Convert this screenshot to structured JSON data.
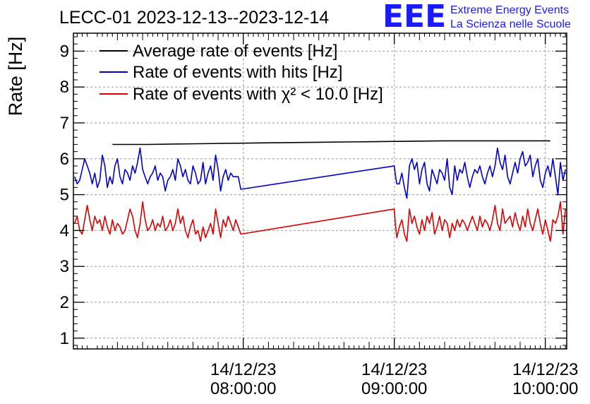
{
  "chart_data": {
    "type": "line",
    "title": "LECC-01 2023-12-13--2023-12-14",
    "ylabel": "Rate [Hz]",
    "xlabel": "",
    "ylim": [
      0.7,
      9.5
    ],
    "xlim_minutes": [
      -67.5,
      128.5
    ],
    "yticks": [
      "1",
      "2",
      "3",
      "4",
      "5",
      "6",
      "7",
      "8",
      "9"
    ],
    "xticks": [
      {
        "date": "14/12/23",
        "time": "08:00:00",
        "minute": 0
      },
      {
        "date": "14/12/23",
        "time": "09:00:00",
        "minute": 60
      },
      {
        "date": "14/12/23",
        "time": "10:00:00",
        "minute": 120
      }
    ],
    "grid": true,
    "legend_position": "top-left",
    "series": [
      {
        "name": "Average rate of events [Hz]",
        "color": "#000000",
        "points": [
          [
            -52,
            6.4
          ],
          [
            -38,
            6.4
          ],
          [
            -18,
            6.42
          ],
          [
            5,
            6.44
          ],
          [
            30,
            6.46
          ],
          [
            55,
            6.48
          ],
          [
            80,
            6.5
          ],
          [
            105,
            6.5
          ],
          [
            122,
            6.5
          ]
        ]
      },
      {
        "name": "Rate of events with hits [Hz]",
        "color": "#0000cc",
        "points": [
          [
            -67,
            5.5
          ],
          [
            -66,
            5.3
          ],
          [
            -65,
            5.4
          ],
          [
            -64,
            5.7
          ],
          [
            -63,
            6.0
          ],
          [
            -62,
            5.8
          ],
          [
            -61,
            5.6
          ],
          [
            -60,
            5.3
          ],
          [
            -59,
            5.6
          ],
          [
            -58,
            5.2
          ],
          [
            -57,
            5.4
          ],
          [
            -56,
            6.1
          ],
          [
            -55,
            5.8
          ],
          [
            -54,
            5.2
          ],
          [
            -53,
            5.5
          ],
          [
            -52,
            5.3
          ],
          [
            -51,
            5.8
          ],
          [
            -50,
            6.0
          ],
          [
            -49,
            5.5
          ],
          [
            -48,
            5.3
          ],
          [
            -47,
            5.7
          ],
          [
            -46,
            5.6
          ],
          [
            -45,
            5.4
          ],
          [
            -44,
            5.8
          ],
          [
            -43,
            5.6
          ],
          [
            -42,
            5.9
          ],
          [
            -41,
            6.3
          ],
          [
            -40,
            5.7
          ],
          [
            -39,
            5.5
          ],
          [
            -38,
            5.3
          ],
          [
            -37,
            5.5
          ],
          [
            -36,
            5.6
          ],
          [
            -35,
            5.8
          ],
          [
            -34,
            5.4
          ],
          [
            -33,
            5.6
          ],
          [
            -32,
            5.5
          ],
          [
            -31,
            5.1
          ],
          [
            -30,
            5.4
          ],
          [
            -29,
            5.5
          ],
          [
            -28,
            5.7
          ],
          [
            -27,
            5.4
          ],
          [
            -26,
            6.0
          ],
          [
            -25,
            5.8
          ],
          [
            -24,
            5.5
          ],
          [
            -23,
            5.7
          ],
          [
            -22,
            5.4
          ],
          [
            -21,
            5.3
          ],
          [
            -20,
            5.8
          ],
          [
            -19,
            5.6
          ],
          [
            -18,
            5.3
          ],
          [
            -17,
            5.4
          ],
          [
            -16,
            5.9
          ],
          [
            -15,
            5.3
          ],
          [
            -14,
            5.6
          ],
          [
            -13,
            5.8
          ],
          [
            -12,
            5.4
          ],
          [
            -11,
            6.1
          ],
          [
            -10,
            5.7
          ],
          [
            -9,
            5.1
          ],
          [
            -8,
            5.5
          ],
          [
            -7,
            5.7
          ],
          [
            -6,
            5.4
          ],
          [
            -5,
            5.6
          ],
          [
            -4,
            5.5
          ],
          [
            -3,
            5.5
          ],
          [
            -2,
            5.5
          ],
          [
            -1,
            5.15
          ],
          [
            60,
            5.8
          ],
          [
            60.5,
            5.5
          ],
          [
            61,
            5.3
          ],
          [
            62,
            5.3
          ],
          [
            63,
            5.6
          ],
          [
            64,
            5.2
          ],
          [
            65,
            4.9
          ],
          [
            66,
            5.8
          ],
          [
            67,
            6.0
          ],
          [
            68,
            5.7
          ],
          [
            69,
            5.9
          ],
          [
            70,
            5.3
          ],
          [
            71,
            5.7
          ],
          [
            72,
            5.9
          ],
          [
            73,
            5.3
          ],
          [
            74,
            5.1
          ],
          [
            75,
            5.7
          ],
          [
            76,
            5.5
          ],
          [
            77,
            5.3
          ],
          [
            78,
            5.7
          ],
          [
            79,
            5.6
          ],
          [
            80,
            5.4
          ],
          [
            81,
            6.0
          ],
          [
            82,
            5.2
          ],
          [
            83,
            5.0
          ],
          [
            84,
            5.8
          ],
          [
            85,
            5.4
          ],
          [
            86,
            5.7
          ],
          [
            87,
            5.6
          ],
          [
            88,
            5.9
          ],
          [
            89,
            5.5
          ],
          [
            90,
            5.2
          ],
          [
            91,
            5.5
          ],
          [
            92,
            5.7
          ],
          [
            93,
            5.6
          ],
          [
            94,
            5.8
          ],
          [
            95,
            5.5
          ],
          [
            96,
            5.3
          ],
          [
            97,
            5.6
          ],
          [
            98,
            5.8
          ],
          [
            99,
            5.5
          ],
          [
            100,
            5.8
          ],
          [
            101,
            6.3
          ],
          [
            102,
            5.9
          ],
          [
            103,
            5.7
          ],
          [
            104,
            6.1
          ],
          [
            105,
            5.5
          ],
          [
            106,
            5.3
          ],
          [
            107,
            5.6
          ],
          [
            108,
            5.9
          ],
          [
            109,
            5.6
          ],
          [
            110,
            6.0
          ],
          [
            111,
            6.2
          ],
          [
            112,
            5.8
          ],
          [
            113,
            5.9
          ],
          [
            114,
            6.1
          ],
          [
            115,
            5.5
          ],
          [
            116,
            5.8
          ],
          [
            117,
            6.0
          ],
          [
            118,
            5.4
          ],
          [
            119,
            5.2
          ],
          [
            120,
            5.6
          ],
          [
            121,
            5.8
          ],
          [
            122,
            5.5
          ],
          [
            123,
            6.0
          ],
          [
            124,
            5.5
          ],
          [
            125,
            5.0
          ],
          [
            126,
            5.9
          ],
          [
            127,
            5.4
          ],
          [
            128,
            5.7
          ]
        ]
      },
      {
        "name": "Rate of events with χ² < 10.0 [Hz]",
        "color": "#dd0000",
        "points": [
          [
            -67,
            4.2
          ],
          [
            -66,
            4.4
          ],
          [
            -65,
            4.0
          ],
          [
            -64,
            3.9
          ],
          [
            -63,
            4.3
          ],
          [
            -62,
            4.7
          ],
          [
            -61,
            4.3
          ],
          [
            -60,
            4.0
          ],
          [
            -59,
            4.4
          ],
          [
            -58,
            4.2
          ],
          [
            -57,
            4.3
          ],
          [
            -56,
            4.0
          ],
          [
            -55,
            4.4
          ],
          [
            -54,
            4.1
          ],
          [
            -53,
            3.9
          ],
          [
            -52,
            4.3
          ],
          [
            -51,
            4.0
          ],
          [
            -50,
            4.2
          ],
          [
            -49,
            4.1
          ],
          [
            -48,
            3.9
          ],
          [
            -47,
            4.0
          ],
          [
            -46,
            4.3
          ],
          [
            -45,
            4.6
          ],
          [
            -44,
            4.4
          ],
          [
            -43,
            4.0
          ],
          [
            -42,
            3.8
          ],
          [
            -41,
            4.2
          ],
          [
            -40,
            4.8
          ],
          [
            -39,
            4.3
          ],
          [
            -38,
            4.0
          ],
          [
            -37,
            4.1
          ],
          [
            -36,
            4.3
          ],
          [
            -35,
            4.0
          ],
          [
            -34,
            4.2
          ],
          [
            -33,
            4.1
          ],
          [
            -32,
            4.4
          ],
          [
            -31,
            4.0
          ],
          [
            -30,
            4.1
          ],
          [
            -29,
            4.3
          ],
          [
            -28,
            4.0
          ],
          [
            -27,
            4.2
          ],
          [
            -26,
            4.6
          ],
          [
            -25,
            4.2
          ],
          [
            -24,
            4.4
          ],
          [
            -23,
            4.0
          ],
          [
            -22,
            3.8
          ],
          [
            -21,
            4.1
          ],
          [
            -20,
            4.3
          ],
          [
            -19,
            3.9
          ],
          [
            -18,
            4.0
          ],
          [
            -17,
            3.7
          ],
          [
            -16,
            4.1
          ],
          [
            -15,
            3.8
          ],
          [
            -14,
            4.0
          ],
          [
            -13,
            4.2
          ],
          [
            -12,
            3.9
          ],
          [
            -11,
            4.6
          ],
          [
            -10,
            4.2
          ],
          [
            -9,
            3.8
          ],
          [
            -8,
            4.3
          ],
          [
            -7,
            4.1
          ],
          [
            -6,
            4.4
          ],
          [
            -5,
            4.2
          ],
          [
            -4,
            4.0
          ],
          [
            -3,
            4.3
          ],
          [
            -2,
            4.1
          ],
          [
            -1,
            3.9
          ],
          [
            60,
            4.6
          ],
          [
            60.5,
            4.1
          ],
          [
            61,
            3.8
          ],
          [
            62,
            4.1
          ],
          [
            63,
            4.3
          ],
          [
            64,
            3.9
          ],
          [
            65,
            3.7
          ],
          [
            66,
            4.6
          ],
          [
            67,
            4.2
          ],
          [
            68,
            4.4
          ],
          [
            69,
            4.1
          ],
          [
            70,
            3.9
          ],
          [
            71,
            4.3
          ],
          [
            72,
            4.0
          ],
          [
            73,
            4.4
          ],
          [
            74,
            4.2
          ],
          [
            75,
            4.5
          ],
          [
            76,
            3.9
          ],
          [
            77,
            4.1
          ],
          [
            78,
            4.4
          ],
          [
            79,
            4.0
          ],
          [
            80,
            4.3
          ],
          [
            81,
            4.2
          ],
          [
            82,
            3.8
          ],
          [
            83,
            4.2
          ],
          [
            84,
            4.0
          ],
          [
            85,
            4.3
          ],
          [
            86,
            4.1
          ],
          [
            87,
            4.3
          ],
          [
            88,
            4.2
          ],
          [
            89,
            4.0
          ],
          [
            90,
            4.2
          ],
          [
            91,
            4.4
          ],
          [
            92,
            4.2
          ],
          [
            93,
            4.0
          ],
          [
            94,
            4.4
          ],
          [
            95,
            4.1
          ],
          [
            96,
            4.3
          ],
          [
            97,
            4.2
          ],
          [
            98,
            4.0
          ],
          [
            99,
            4.3
          ],
          [
            100,
            4.7
          ],
          [
            101,
            4.2
          ],
          [
            102,
            4.0
          ],
          [
            103,
            4.6
          ],
          [
            104,
            4.2
          ],
          [
            105,
            4.3
          ],
          [
            106,
            4.4
          ],
          [
            107,
            4.1
          ],
          [
            108,
            4.5
          ],
          [
            109,
            4.2
          ],
          [
            110,
            4.0
          ],
          [
            111,
            4.4
          ],
          [
            112,
            4.1
          ],
          [
            113,
            4.6
          ],
          [
            114,
            4.2
          ],
          [
            115,
            4.0
          ],
          [
            116,
            4.3
          ],
          [
            117,
            4.6
          ],
          [
            118,
            4.2
          ],
          [
            119,
            3.9
          ],
          [
            120,
            4.3
          ],
          [
            121,
            4.0
          ],
          [
            122,
            3.7
          ],
          [
            123,
            4.3
          ],
          [
            124,
            4.2
          ],
          [
            125,
            4.4
          ],
          [
            126,
            4.8
          ],
          [
            127,
            3.9
          ],
          [
            128,
            4.6
          ]
        ]
      }
    ]
  },
  "logo": {
    "mark": "EEE",
    "line1": "Extreme Energy Events",
    "line2": "La Scienza nelle Scuole",
    "color": "#1a1aff"
  }
}
